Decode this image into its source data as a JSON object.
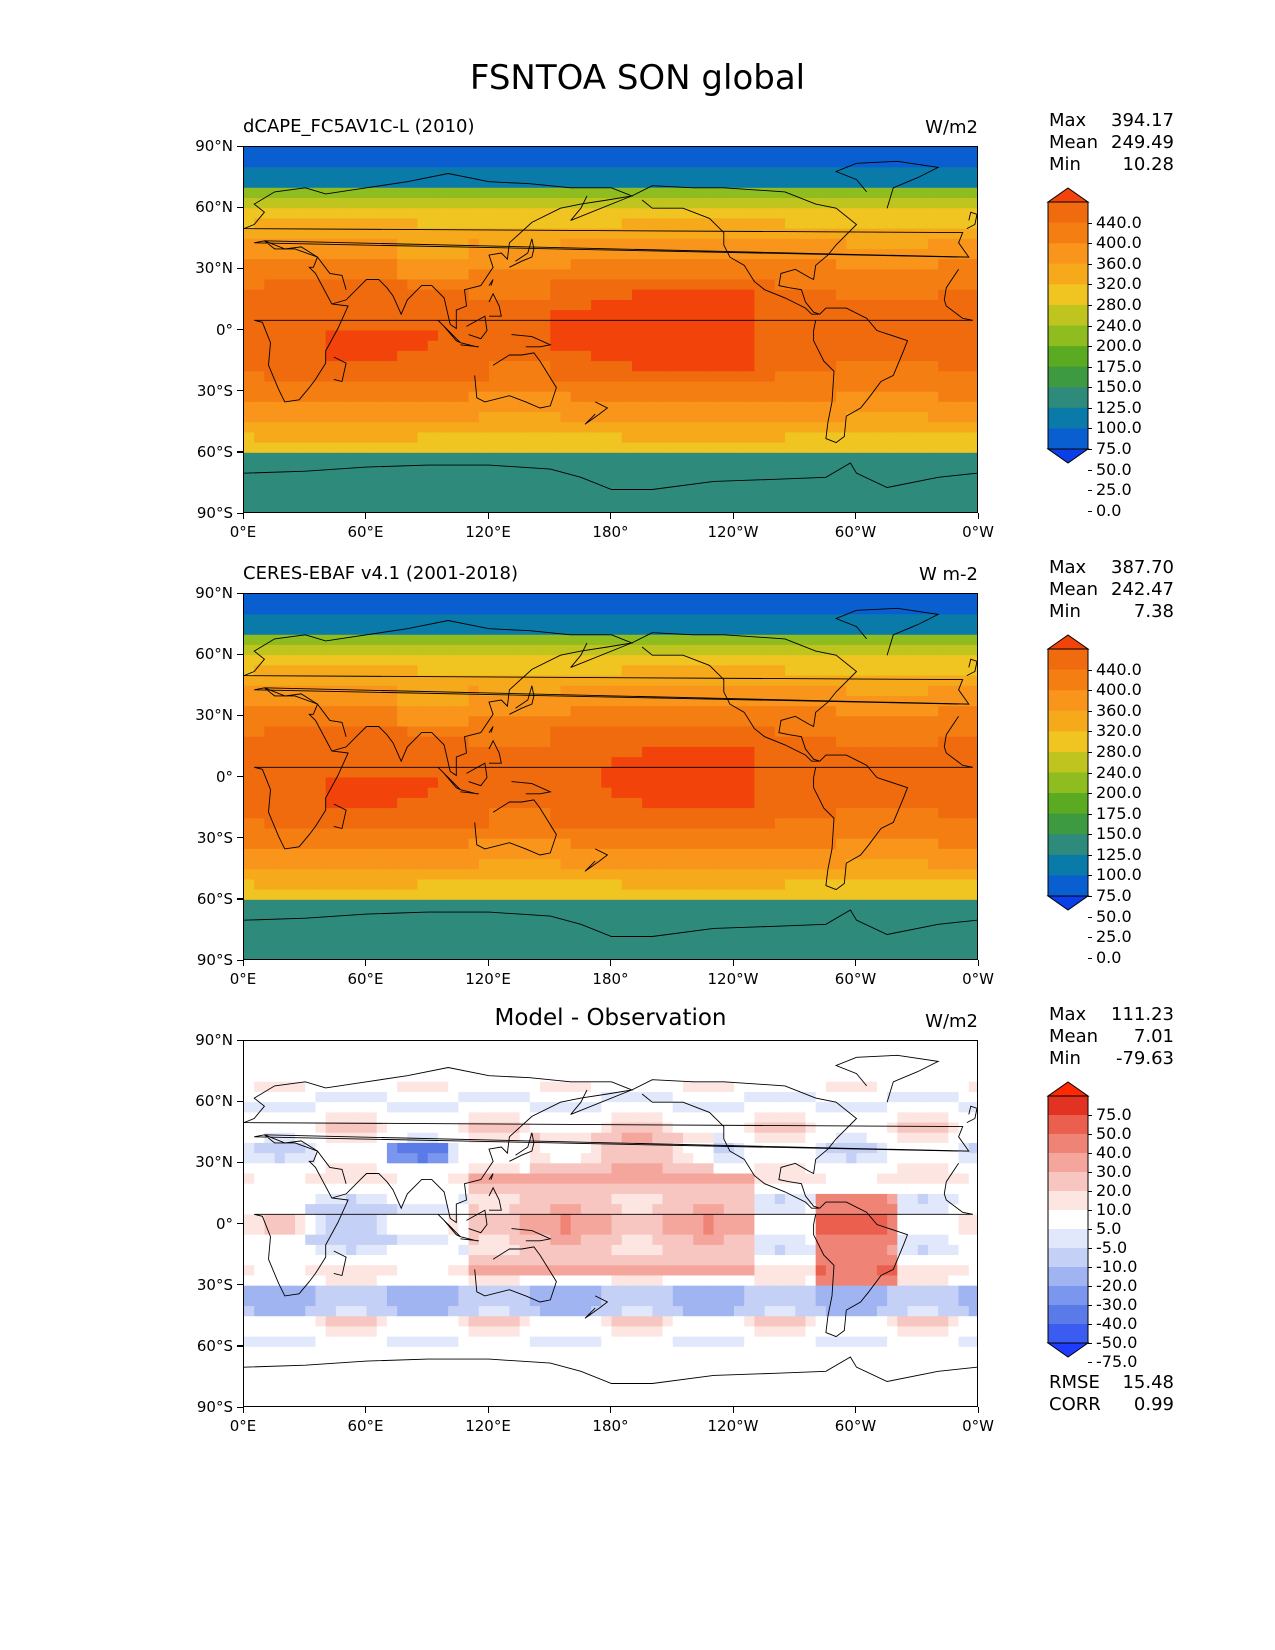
{
  "figure_title": "FSNTOA SON global",
  "lon_tick_labels": [
    "0°E",
    "60°E",
    "120°E",
    "180°",
    "120°W",
    "60°W",
    "0°W"
  ],
  "lat_tick_labels": [
    "90°N",
    "60°N",
    "30°N",
    "0°",
    "30°S",
    "60°S",
    "90°S"
  ],
  "panels": [
    {
      "title": "dCAPE_FC5AV1C-L (2010)",
      "units": "W/m2",
      "stats": [
        {
          "label": "Max",
          "value": "394.17"
        },
        {
          "label": "Mean",
          "value": "249.49"
        },
        {
          "label": "Min",
          "value": "10.28"
        }
      ],
      "colorbar_labels": [
        "440.0",
        "400.0",
        "360.0",
        "320.0",
        "280.0",
        "240.0",
        "200.0",
        "175.0",
        "150.0",
        "125.0",
        "100.0",
        "75.0",
        "50.0",
        "25.0",
        "0.0"
      ]
    },
    {
      "title": "CERES-EBAF v4.1 (2001-2018)",
      "units": "W m-2",
      "stats": [
        {
          "label": "Max",
          "value": "387.70"
        },
        {
          "label": "Mean",
          "value": "242.47"
        },
        {
          "label": "Min",
          "value": "7.38"
        }
      ],
      "colorbar_labels": [
        "440.0",
        "400.0",
        "360.0",
        "320.0",
        "280.0",
        "240.0",
        "200.0",
        "175.0",
        "150.0",
        "125.0",
        "100.0",
        "75.0",
        "50.0",
        "25.0",
        "0.0"
      ]
    },
    {
      "title": "Model - Observation",
      "units": "W/m2",
      "stats": [
        {
          "label": "Max",
          "value": "111.23"
        },
        {
          "label": "Mean",
          "value": "7.01"
        },
        {
          "label": "Min",
          "value": "-79.63"
        }
      ],
      "colorbar_labels": [
        "75.0",
        "50.0",
        "40.0",
        "30.0",
        "20.0",
        "10.0",
        "5.0",
        "-5.0",
        "-10.0",
        "-20.0",
        "-30.0",
        "-40.0",
        "-50.0",
        "-75.0"
      ],
      "extra_stats": [
        {
          "label": "RMSE",
          "value": "15.48"
        },
        {
          "label": "CORR",
          "value": "0.99"
        }
      ]
    }
  ],
  "colors": {
    "field_scale": [
      "#0b3fe8",
      "#0a5fd0",
      "#0a7aa8",
      "#2e8a7a",
      "#3e9a40",
      "#5aaa22",
      "#8fbc1e",
      "#bfc41e",
      "#f0c421",
      "#f6a91a",
      "#f8951a",
      "#f57e12",
      "#f06a0e",
      "#f2440a"
    ],
    "diff_scale": [
      "#1f3bff",
      "#3a5cf0",
      "#5a7ae8",
      "#7b96ee",
      "#a0b4f2",
      "#c4d0f6",
      "#e2e8fb",
      "#ffffff",
      "#fde5e2",
      "#f8c6c0",
      "#f4a69c",
      "#ef8376",
      "#ea5f4e",
      "#e23322",
      "#ff2a00"
    ]
  }
}
